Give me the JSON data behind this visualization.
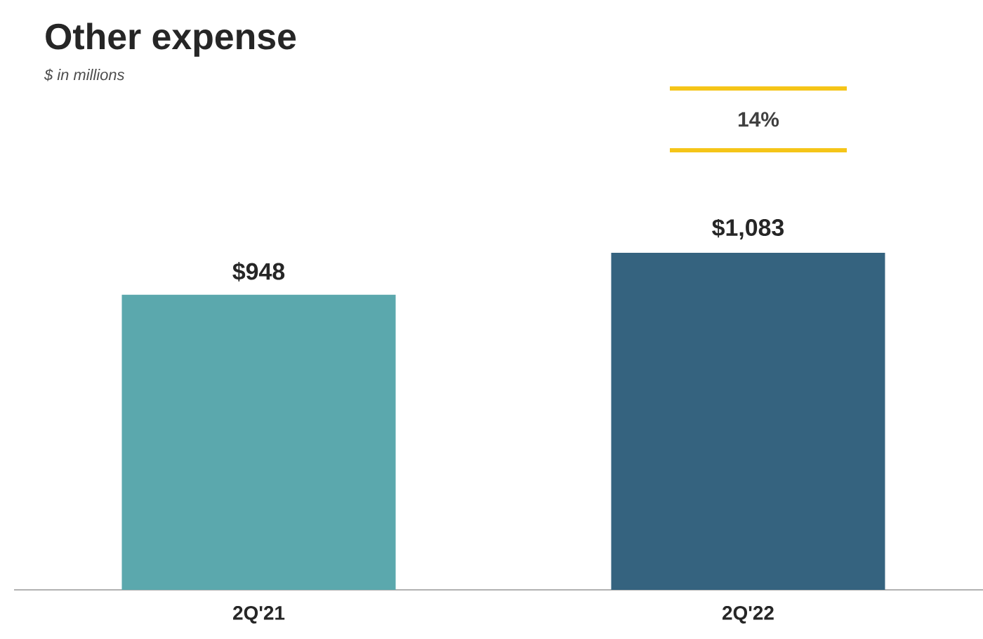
{
  "chart_data": {
    "type": "bar",
    "title": "Other expense",
    "subtitle": "$ in millions",
    "categories": [
      "2Q'21",
      "2Q'22"
    ],
    "values": [
      948,
      1083
    ],
    "colors": [
      "#5ba8ad",
      "#35637f"
    ],
    "value_labels": [
      "$948",
      "$1,083"
    ],
    "annotations": [
      "14%"
    ]
  }
}
